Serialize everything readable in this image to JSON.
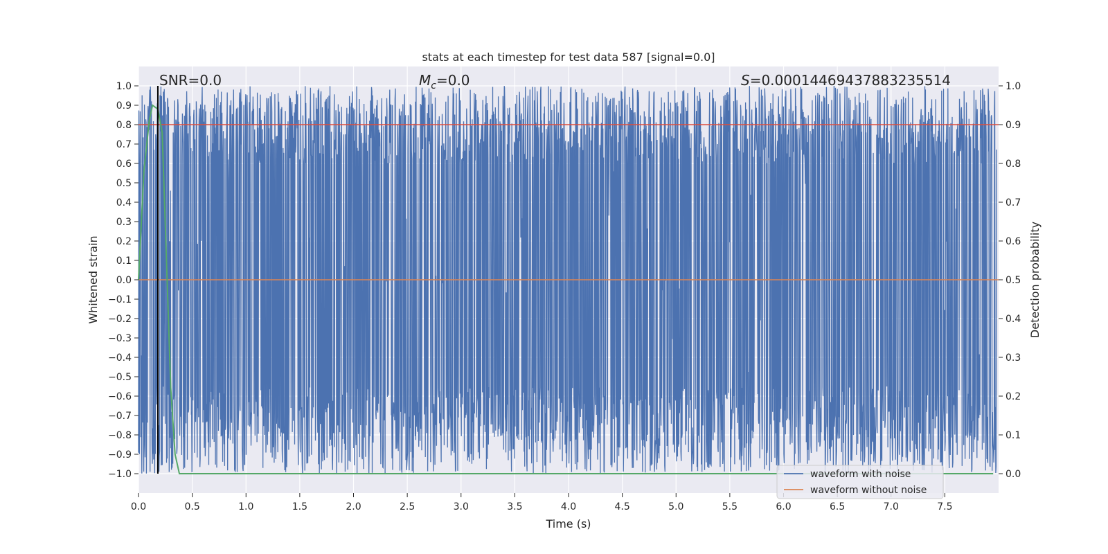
{
  "chart_data": {
    "type": "line",
    "title": "stats at each timestep for test data 587 [signal=0.0]",
    "xlabel": "Time (s)",
    "ylabel": "Whitened strain",
    "y2label": "Detection probability",
    "xlim": [
      0.0,
      8.0
    ],
    "ylim": [
      -1.1,
      1.1
    ],
    "y2lim": [
      -0.05,
      1.05
    ],
    "x_ticks": [
      "0.0",
      "0.5",
      "1.0",
      "1.5",
      "2.0",
      "2.5",
      "3.0",
      "3.5",
      "4.0",
      "4.5",
      "5.0",
      "5.5",
      "6.0",
      "6.5",
      "7.0",
      "7.5"
    ],
    "y_ticks": [
      "1.0",
      "0.9",
      "0.8",
      "0.7",
      "0.6",
      "0.5",
      "0.4",
      "0.3",
      "0.2",
      "0.1",
      "0.0",
      "−0.1",
      "−0.2",
      "−0.3",
      "−0.4",
      "−0.5",
      "−0.6",
      "−0.7",
      "−0.8",
      "−0.9",
      "−1.0"
    ],
    "y2_ticks": [
      "1.0",
      "0.9",
      "0.8",
      "0.7",
      "0.6",
      "0.5",
      "0.4",
      "0.3",
      "0.2",
      "0.1",
      "0.0"
    ],
    "grid": true,
    "legend_position": "lower-right",
    "annotations": {
      "snr": "SNR=0.0",
      "mc_symbol": "M",
      "mc_sub": "c",
      "mc_value": "=0.0",
      "s_symbol": "S",
      "s_value": "=0.00014469437883235514"
    },
    "series": [
      {
        "name": "waveform with noise",
        "color": "#4c72b0",
        "axis": "left",
        "description_range": [
          -1.0,
          1.0
        ]
      },
      {
        "name": "waveform without noise",
        "color": "#dd8452",
        "axis": "left",
        "x": [
          0.0,
          8.0
        ],
        "y": [
          0.0,
          0.0
        ]
      },
      {
        "color": "#55a868",
        "axis": "right",
        "x": [
          0.0,
          0.05,
          0.1,
          0.13,
          0.18,
          0.22,
          0.26,
          0.3,
          0.34,
          0.38,
          0.5,
          1.0,
          2.0,
          3.0,
          4.0,
          5.0,
          6.0,
          7.0,
          7.95
        ],
        "y": [
          0.5,
          0.78,
          0.91,
          0.95,
          0.94,
          0.88,
          0.55,
          0.22,
          0.05,
          0.0,
          0.0,
          0.0,
          0.0,
          0.0,
          0.0,
          0.0,
          0.0,
          0.0,
          0.0
        ]
      },
      {
        "color": "#dd4c3c",
        "axis": "right",
        "x": [
          0.0,
          8.0
        ],
        "y": [
          0.9,
          0.9
        ]
      }
    ],
    "vline_x": 0.18,
    "colors": {
      "plot_bg": "#eaeaf2",
      "grid": "#ffffff",
      "noise": "#4c72b0",
      "clean": "#dd8452",
      "probability": "#55a868",
      "threshold": "#dd4c3c",
      "vline": "#000000"
    }
  }
}
